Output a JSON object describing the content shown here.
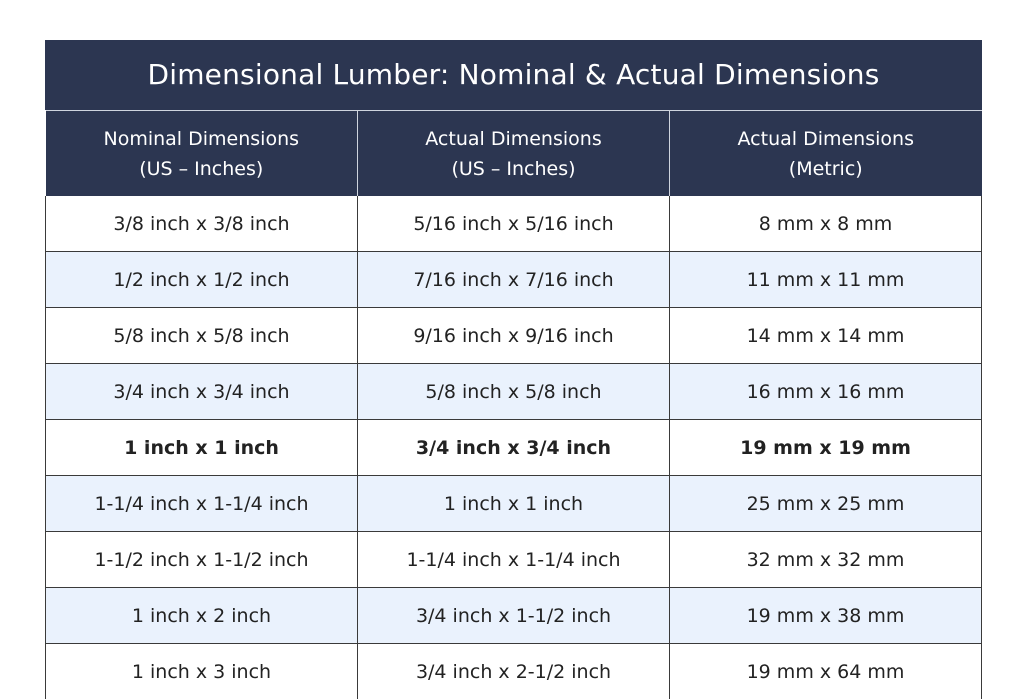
{
  "title": "Dimensional Lumber: Nominal & Actual Dimensions",
  "headers": [
    {
      "line1": "Nominal Dimensions",
      "line2": "(US – Inches)"
    },
    {
      "line1": "Actual Dimensions",
      "line2": "(US – Inches)"
    },
    {
      "line1": "Actual Dimensions",
      "line2": "(Metric)"
    }
  ],
  "rows": [
    {
      "nominal": "3/8 inch x 3/8 inch",
      "actual_us": "5/16 inch x 5/16 inch",
      "actual_metric": "8 mm x 8 mm"
    },
    {
      "nominal": "1/2 inch x 1/2 inch",
      "actual_us": "7/16 inch x 7/16 inch",
      "actual_metric": "11 mm x 11 mm"
    },
    {
      "nominal": "5/8 inch x 5/8 inch",
      "actual_us": "9/16 inch x 9/16 inch",
      "actual_metric": "14 mm x 14 mm"
    },
    {
      "nominal": "3/4 inch x 3/4 inch",
      "actual_us": "5/8 inch x 5/8 inch",
      "actual_metric": "16 mm x 16 mm"
    },
    {
      "nominal": "1 inch x 1 inch",
      "actual_us": "3/4 inch x 3/4 inch",
      "actual_metric": "19 mm x 19 mm",
      "bold": true
    },
    {
      "nominal": "1-1/4 inch x 1-1/4 inch",
      "actual_us": "1 inch x 1 inch",
      "actual_metric": "25 mm x 25 mm"
    },
    {
      "nominal": "1-1/2 inch x 1-1/2 inch",
      "actual_us": "1-1/4 inch x 1-1/4 inch",
      "actual_metric": "32 mm x 32 mm"
    },
    {
      "nominal": "1 inch x 2 inch",
      "actual_us": "3/4 inch x 1-1/2 inch",
      "actual_metric": "19 mm x 38 mm"
    },
    {
      "nominal": "1 inch x 3 inch",
      "actual_us": "3/4 inch x 2-1/2 inch",
      "actual_metric": "19 mm x 64 mm"
    }
  ],
  "colors": {
    "header_bg": "#2c3651",
    "header_text": "#ffffff",
    "stripe_bg": "#eaf2fd",
    "row_bg": "#ffffff",
    "border": "#3a3a3a"
  }
}
